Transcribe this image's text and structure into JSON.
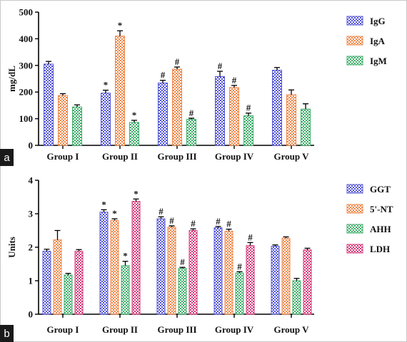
{
  "colors": {
    "IgG": "#5557d6",
    "IgA": "#f0874a",
    "IgM": "#3fae6a",
    "GGT": "#5557d6",
    "5'-NT": "#f0874a",
    "AHH": "#3fae6a",
    "LDH": "#d63a7a"
  },
  "chart_data": [
    {
      "panel_label": "a",
      "type": "bar",
      "ylabel": "mg/dL",
      "ylim": [
        0,
        500
      ],
      "yticks": [
        0,
        100,
        200,
        300,
        400,
        500
      ],
      "categories": [
        "Group I",
        "Group II",
        "Group III",
        "Group IV",
        "Group V"
      ],
      "legend_position": "top-right",
      "series": [
        {
          "name": "IgG",
          "values": [
            305,
            196,
            234,
            258,
            282
          ],
          "errors": [
            10,
            11,
            10,
            20,
            10
          ],
          "marks": [
            "",
            "*",
            "#",
            "#",
            ""
          ]
        },
        {
          "name": "IgA",
          "values": [
            187,
            410,
            286,
            217,
            190
          ],
          "errors": [
            7,
            20,
            8,
            8,
            18
          ],
          "marks": [
            "",
            "*",
            "#",
            "#",
            ""
          ]
        },
        {
          "name": "IgM",
          "values": [
            144,
            86,
            98,
            111,
            136
          ],
          "errors": [
            8,
            8,
            4,
            10,
            20
          ],
          "marks": [
            "",
            "*",
            "#",
            "#",
            ""
          ]
        }
      ]
    },
    {
      "panel_label": "b",
      "type": "bar",
      "ylabel": "Units",
      "ylim": [
        0,
        4
      ],
      "yticks": [
        0,
        1,
        2,
        3,
        4
      ],
      "categories": [
        "Group I",
        "Group II",
        "Group III",
        "Group IV",
        "Group V"
      ],
      "legend_position": "top-right",
      "series": [
        {
          "name": "GGT",
          "values": [
            1.88,
            3.05,
            2.85,
            2.58,
            2.03
          ],
          "errors": [
            0.06,
            0.07,
            0.06,
            0.04,
            0.04
          ],
          "marks": [
            "",
            "*",
            "#",
            "#",
            ""
          ]
        },
        {
          "name": "5'-NT",
          "values": [
            2.22,
            2.8,
            2.6,
            2.48,
            2.27
          ],
          "errors": [
            0.28,
            0.05,
            0.04,
            0.06,
            0.04
          ],
          "marks": [
            "",
            "*",
            "#",
            "#",
            ""
          ]
        },
        {
          "name": "AHH",
          "values": [
            1.17,
            1.45,
            1.37,
            1.23,
            1.0
          ],
          "errors": [
            0.05,
            0.13,
            0.03,
            0.04,
            0.07
          ],
          "marks": [
            "",
            "*",
            "#",
            "#",
            ""
          ]
        },
        {
          "name": "LDH",
          "values": [
            1.88,
            3.37,
            2.5,
            2.05,
            1.92
          ],
          "errors": [
            0.05,
            0.07,
            0.05,
            0.09,
            0.05
          ],
          "marks": [
            "",
            "*",
            "#",
            "#",
            ""
          ]
        }
      ]
    }
  ]
}
